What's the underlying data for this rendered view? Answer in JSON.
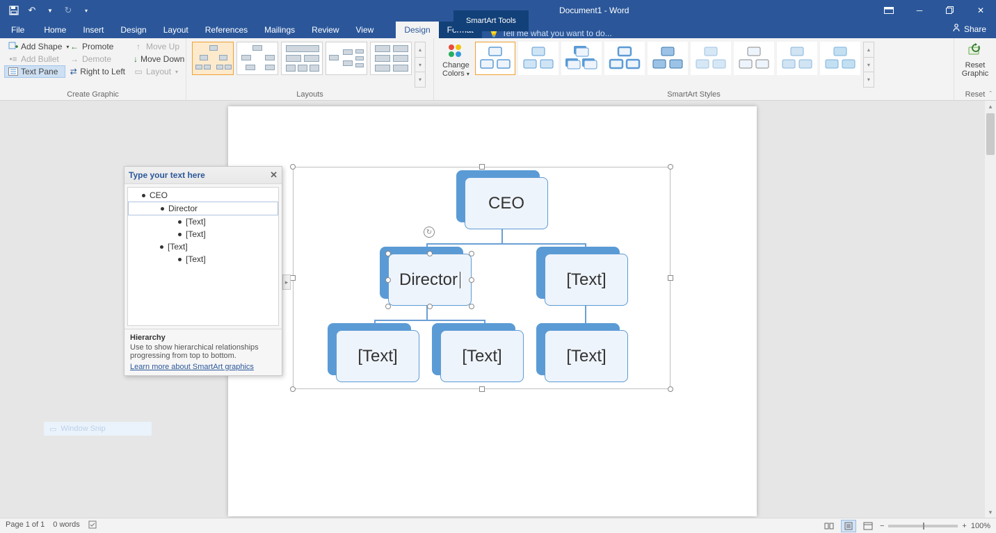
{
  "titlebar": {
    "smartart_tools": "SmartArt Tools",
    "doc_title": "Document1 - Word"
  },
  "tabs": {
    "file": "File",
    "home": "Home",
    "insert": "Insert",
    "design_main": "Design",
    "layout": "Layout",
    "references": "References",
    "mailings": "Mailings",
    "review": "Review",
    "view": "View",
    "design_ctx": "Design",
    "format_ctx": "Format",
    "tell_me": "Tell me what you want to do...",
    "share": "Share"
  },
  "ribbon": {
    "create_graphic": {
      "label": "Create Graphic",
      "add_shape": "Add Shape",
      "add_bullet": "Add Bullet",
      "text_pane": "Text Pane",
      "promote": "Promote",
      "demote": "Demote",
      "right_to_left": "Right to Left",
      "move_up": "Move Up",
      "move_down": "Move Down",
      "layout": "Layout"
    },
    "layouts": {
      "label": "Layouts"
    },
    "change_colors": {
      "label1": "Change",
      "label2": "Colors"
    },
    "styles": {
      "label": "SmartArt Styles"
    },
    "reset": {
      "label": "Reset",
      "btn1": "Reset",
      "btn2": "Graphic"
    }
  },
  "text_pane": {
    "title": "Type your text here",
    "items": [
      {
        "text": "CEO",
        "indent": 0,
        "selected": false
      },
      {
        "text": "Director",
        "indent": 1,
        "selected": true
      },
      {
        "text": "[Text]",
        "indent": 2,
        "selected": false
      },
      {
        "text": "[Text]",
        "indent": 2,
        "selected": false
      },
      {
        "text": "[Text]",
        "indent": 1,
        "selected": false
      },
      {
        "text": "[Text]",
        "indent": 2,
        "selected": false
      }
    ],
    "footer_title": "Hierarchy",
    "footer_desc": "Use to show hierarchical relationships progressing from top to bottom.",
    "footer_link": "Learn more about SmartArt graphics"
  },
  "smartart": {
    "colors": {
      "accent": "#5b9bd5",
      "box_fill": "#eef4fb",
      "line": "#6a9fd4"
    },
    "nodes": {
      "ceo": "CEO",
      "director": "Director",
      "text2": "[Text]",
      "c1": "[Text]",
      "c2": "[Text]",
      "c3": "[Text]"
    }
  },
  "statusbar": {
    "page": "Page 1 of 1",
    "words": "0 words",
    "zoom": "100%"
  },
  "snip": "Window Snip"
}
